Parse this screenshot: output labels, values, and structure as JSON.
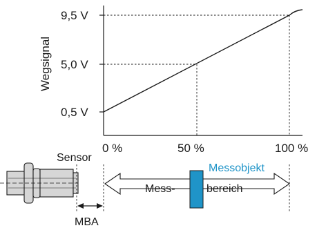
{
  "chart_data": {
    "type": "line",
    "ylabel": "Wegsignal",
    "x_tick_labels": [
      "0 %",
      "50 %",
      "100 %"
    ],
    "y_tick_labels": [
      "0,5 V",
      "5,0 V",
      "9,5 V"
    ],
    "x": [
      0,
      50,
      100
    ],
    "y": [
      0.5,
      5.0,
      9.5
    ],
    "xlim": [
      0,
      100
    ],
    "ylim": [
      0.5,
      9.5
    ],
    "grid": false
  },
  "diagram": {
    "sensor_label": "Sensor",
    "mba_label": "MBA",
    "measuring_range_left": "Mess-",
    "measuring_range_right": "bereich",
    "target_label": "Messobjekt",
    "target_color": "#1f94c8",
    "sensor_color": "#d6d6d6"
  }
}
